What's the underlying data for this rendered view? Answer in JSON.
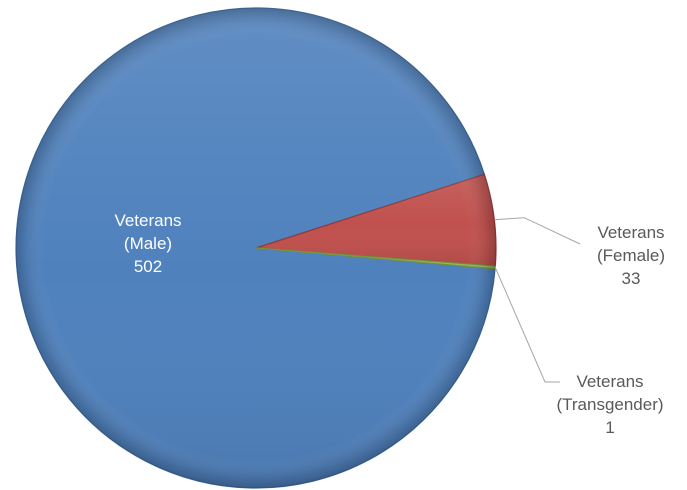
{
  "chart_data": {
    "type": "pie",
    "title": "",
    "slices": [
      {
        "label": [
          "Veterans",
          "(Male)"
        ],
        "value": 502,
        "color": "#4f81bd",
        "label_color": "#ffffff",
        "label_placement": "inside"
      },
      {
        "label": [
          "Veterans",
          "(Female)"
        ],
        "value": 33,
        "color": "#c0504d",
        "label_color": "#595959",
        "label_placement": "outside-right"
      },
      {
        "label": [
          "Veterans",
          "(Transgender)"
        ],
        "value": 1,
        "color": "#9bbb59",
        "label_color": "#595959",
        "label_placement": "outside-bottom-right"
      }
    ],
    "legend": "none",
    "style": "3d-bevel"
  }
}
